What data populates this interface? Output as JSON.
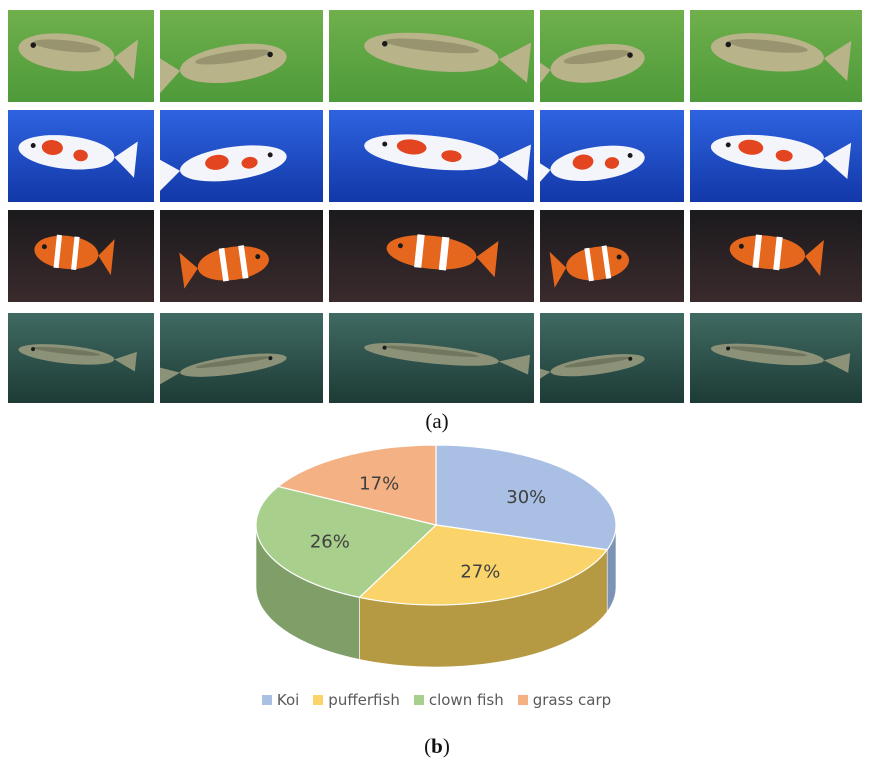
{
  "figure": {
    "panel_a": {
      "label_open": "(",
      "letter": "a",
      "label_close": ")"
    },
    "panel_b": {
      "label_open": "(",
      "letter": "b",
      "label_close": ")"
    },
    "photo_rows": [
      {
        "species": "pufferfish",
        "background": [
          "#6fb04c",
          "#4e9a3a"
        ],
        "body": "#b9b38a",
        "accent": "#7d7a5a",
        "count": 5
      },
      {
        "species": "koi",
        "background": [
          "#2e63e0",
          "#1238a8"
        ],
        "body": "#f4f5fb",
        "accent": "#e2451f",
        "count": 5
      },
      {
        "species": "clown fish",
        "background": [
          "#1b1a1d",
          "#3a2a2c"
        ],
        "body": "#e4671d",
        "accent": "#ffffff",
        "count": 5
      },
      {
        "species": "grass carp",
        "background": [
          "#3f6a62",
          "#1e3b36"
        ],
        "body": "#8c9277",
        "accent": "#5b5f4c",
        "count": 5
      }
    ]
  },
  "chart_data": {
    "type": "pie",
    "style": "3d",
    "categories": [
      "Koi",
      "pufferfish",
      "clown fish",
      "grass carp"
    ],
    "values": [
      30,
      27,
      26,
      17
    ],
    "labels": [
      "30%",
      "27%",
      "26%",
      "17%"
    ],
    "colors": [
      "#a9c0e4",
      "#fad46a",
      "#a8cf8c",
      "#f4b183"
    ],
    "side_colors": [
      "#7d93b6",
      "#b59a43",
      "#7f9e68",
      "#c28460"
    ],
    "legend_position": "bottom",
    "title": ""
  }
}
